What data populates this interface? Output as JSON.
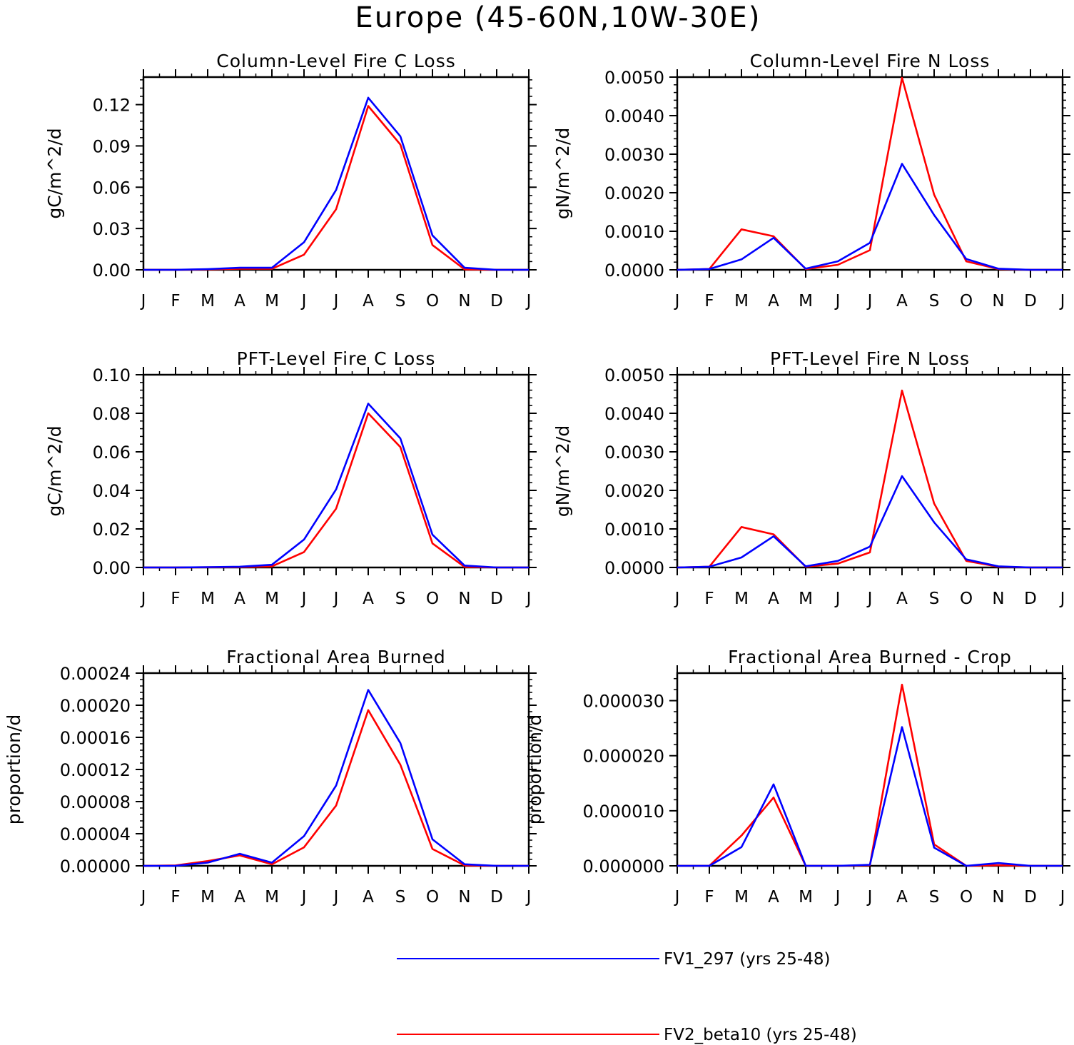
{
  "figure_title": "Europe (45-60N,10W-30E)",
  "colors": {
    "series1": "#0000ff",
    "series2": "#ff0000",
    "axis": "#000000"
  },
  "legend": [
    {
      "label": "FV1_297 (yrs 25-48)",
      "color": "#0000ff"
    },
    {
      "label": "FV2_beta10 (yrs 25-48)",
      "color": "#ff0000"
    }
  ],
  "chart_data": [
    {
      "type": "line",
      "title": "Column-Level Fire C Loss",
      "xlabel": "",
      "ylabel": "gC/m^2/d",
      "categories": [
        "J",
        "F",
        "M",
        "A",
        "M",
        "J",
        "J",
        "A",
        "S",
        "O",
        "N",
        "D",
        "J"
      ],
      "ylim": [
        0,
        0.14
      ],
      "yticks": [
        0,
        0.03,
        0.06,
        0.09,
        0.12
      ],
      "ytick_labels": [
        "0.00",
        "0.03",
        "0.06",
        "0.09",
        "0.12"
      ],
      "series": [
        {
          "name": "FV1_297 (yrs 25-48)",
          "values": [
            0,
            0,
            0.0005,
            0.0015,
            0.0015,
            0.02,
            0.058,
            0.125,
            0.097,
            0.025,
            0.0015,
            0,
            0
          ]
        },
        {
          "name": "FV2_beta10 (yrs 25-48)",
          "values": [
            0,
            0,
            0.0003,
            0.0008,
            0.0008,
            0.011,
            0.044,
            0.119,
            0.091,
            0.018,
            0.0003,
            0,
            0
          ]
        }
      ]
    },
    {
      "type": "line",
      "title": "Column-Level Fire N Loss",
      "xlabel": "",
      "ylabel": "gN/m^2/d",
      "categories": [
        "J",
        "F",
        "M",
        "A",
        "M",
        "J",
        "J",
        "A",
        "S",
        "O",
        "N",
        "D",
        "J"
      ],
      "ylim": [
        0,
        0.005
      ],
      "yticks": [
        0,
        0.001,
        0.002,
        0.003,
        0.004,
        0.005
      ],
      "ytick_labels": [
        "0.0000",
        "0.0010",
        "0.0020",
        "0.0030",
        "0.0040",
        "0.0050"
      ],
      "series": [
        {
          "name": "FV1_297 (yrs 25-48)",
          "values": [
            0,
            2e-05,
            0.00027,
            0.00083,
            3e-05,
            0.00022,
            0.0007,
            0.00275,
            0.00142,
            0.00028,
            3e-05,
            0,
            0
          ]
        },
        {
          "name": "FV2_beta10 (yrs 25-48)",
          "values": [
            0,
            2e-05,
            0.00105,
            0.00087,
            2e-05,
            0.00013,
            0.00051,
            0.00498,
            0.00195,
            0.00022,
            2e-05,
            0,
            0
          ]
        }
      ]
    },
    {
      "type": "line",
      "title": "PFT-Level Fire C Loss",
      "xlabel": "",
      "ylabel": "gC/m^2/d",
      "categories": [
        "J",
        "F",
        "M",
        "A",
        "M",
        "J",
        "J",
        "A",
        "S",
        "O",
        "N",
        "D",
        "J"
      ],
      "ylim": [
        0,
        0.1
      ],
      "yticks": [
        0,
        0.02,
        0.04,
        0.06,
        0.08,
        0.1
      ],
      "ytick_labels": [
        "0.00",
        "0.02",
        "0.04",
        "0.06",
        "0.08",
        "0.10"
      ],
      "series": [
        {
          "name": "FV1_297 (yrs 25-48)",
          "values": [
            0,
            0,
            0.0002,
            0.0004,
            0.0014,
            0.0145,
            0.0405,
            0.085,
            0.067,
            0.017,
            0.001,
            0,
            0
          ]
        },
        {
          "name": "FV2_beta10 (yrs 25-48)",
          "values": [
            0,
            0,
            0.0001,
            0.0002,
            0.0006,
            0.008,
            0.0305,
            0.08,
            0.0625,
            0.0125,
            0.0003,
            0,
            0
          ]
        }
      ]
    },
    {
      "type": "line",
      "title": "PFT-Level Fire N Loss",
      "xlabel": "",
      "ylabel": "gN/m^2/d",
      "categories": [
        "J",
        "F",
        "M",
        "A",
        "M",
        "J",
        "J",
        "A",
        "S",
        "O",
        "N",
        "D",
        "J"
      ],
      "ylim": [
        0,
        0.005
      ],
      "yticks": [
        0,
        0.001,
        0.002,
        0.003,
        0.004,
        0.005
      ],
      "ytick_labels": [
        "0.0000",
        "0.0010",
        "0.0020",
        "0.0030",
        "0.0040",
        "0.0050"
      ],
      "series": [
        {
          "name": "FV1_297 (yrs 25-48)",
          "values": [
            0,
            2e-05,
            0.00026,
            0.00081,
            3e-05,
            0.00017,
            0.00054,
            0.00237,
            0.00117,
            0.00021,
            3e-05,
            0,
            0
          ]
        },
        {
          "name": "FV2_beta10 (yrs 25-48)",
          "values": [
            0,
            2e-05,
            0.00105,
            0.00086,
            2e-05,
            0.0001,
            0.00039,
            0.00459,
            0.00166,
            0.00017,
            2e-05,
            0,
            0
          ]
        }
      ]
    },
    {
      "type": "line",
      "title": "Fractional Area Burned",
      "xlabel": "",
      "ylabel": "proportion/d",
      "categories": [
        "J",
        "F",
        "M",
        "A",
        "M",
        "J",
        "J",
        "A",
        "S",
        "O",
        "N",
        "D",
        "J"
      ],
      "ylim": [
        0,
        0.00024
      ],
      "yticks": [
        0,
        4e-05,
        8e-05,
        0.00012,
        0.00016,
        0.0002,
        0.00024
      ],
      "ytick_labels": [
        "0.00000",
        "0.00004",
        "0.00008",
        "0.00012",
        "0.00016",
        "0.00020",
        "0.00024"
      ],
      "series": [
        {
          "name": "FV1_297 (yrs 25-48)",
          "values": [
            0,
            0,
            4e-06,
            1.5e-05,
            4e-06,
            3.7e-05,
            0.0001,
            0.000219,
            0.000153,
            3.3e-05,
            2e-06,
            0,
            0
          ]
        },
        {
          "name": "FV2_beta10 (yrs 25-48)",
          "values": [
            0,
            5e-07,
            6e-06,
            1.3e-05,
            2e-06,
            2.3e-05,
            7.5e-05,
            0.000194,
            0.000126,
            2.1e-05,
            5e-07,
            0,
            0
          ]
        }
      ]
    },
    {
      "type": "line",
      "title": "Fractional Area Burned - Crop",
      "xlabel": "",
      "ylabel": "proportion/d",
      "categories": [
        "J",
        "F",
        "M",
        "A",
        "M",
        "J",
        "J",
        "A",
        "S",
        "O",
        "N",
        "D",
        "J"
      ],
      "ylim": [
        0,
        3.5e-05
      ],
      "yticks": [
        0,
        1e-05,
        2e-05,
        3e-05
      ],
      "ytick_labels": [
        "0.000000",
        "0.000010",
        "0.000020",
        "0.000030"
      ],
      "series": [
        {
          "name": "FV1_297 (yrs 25-48)",
          "values": [
            0,
            0,
            3.4e-06,
            1.48e-05,
            0,
            0,
            2e-07,
            2.52e-05,
            3.3e-06,
            0,
            5e-07,
            0,
            0
          ]
        },
        {
          "name": "FV2_beta10 (yrs 25-48)",
          "values": [
            0,
            0,
            5.5e-06,
            1.24e-05,
            0,
            0,
            1e-07,
            3.29e-05,
            3.9e-06,
            0,
            1e-07,
            0,
            0
          ]
        }
      ]
    }
  ]
}
